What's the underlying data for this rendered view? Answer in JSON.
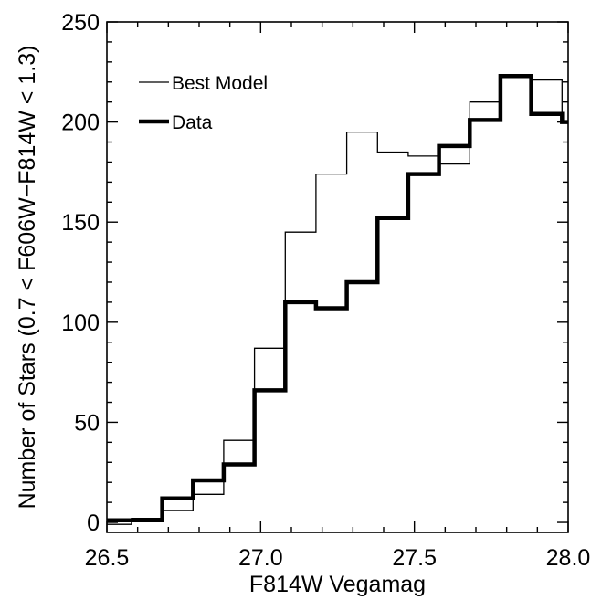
{
  "chart_data": {
    "type": "line",
    "step": true,
    "title": "",
    "xlabel": "F814W Vegamag",
    "ylabel": "Number of Stars (0.7 < F606W−F814W < 1.3)",
    "xlim": [
      26.5,
      28.0
    ],
    "ylim": [
      -5,
      250
    ],
    "x_ticks": [
      "26.5",
      "27.0",
      "27.5",
      "28.0"
    ],
    "y_ticks": [
      "0",
      "50",
      "100",
      "150",
      "200",
      "250"
    ],
    "bin_edges": [
      26.48,
      26.58,
      26.68,
      26.78,
      26.88,
      26.98,
      27.08,
      27.18,
      27.28,
      27.38,
      27.48,
      27.58,
      27.68,
      27.78,
      27.88,
      27.98,
      28.0
    ],
    "series": [
      {
        "name": "Best Model",
        "style": "thin",
        "values": [
          -1,
          2,
          6,
          14,
          41,
          87,
          145,
          174,
          195,
          185,
          183,
          179,
          210,
          223,
          221,
          200
        ]
      },
      {
        "name": "Data",
        "style": "thick",
        "values": [
          1,
          1,
          12,
          21,
          29,
          66,
          110,
          107,
          120,
          152,
          174,
          188,
          201,
          223,
          204,
          200
        ]
      }
    ],
    "legend": {
      "position": "top-left"
    },
    "grid": false
  }
}
